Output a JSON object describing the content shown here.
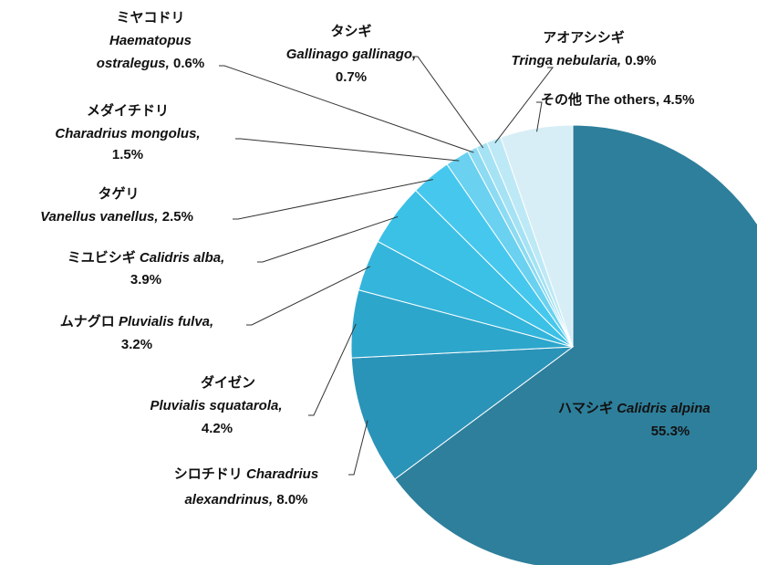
{
  "chart_data": {
    "type": "pie",
    "categories": [
      {
        "jp": "ハマシギ",
        "latin": [
          "Calidris alpina"
        ]
      },
      {
        "jp": "シロチドリ",
        "latin": [
          "Charadrius",
          "alexandrinus,"
        ]
      },
      {
        "jp": "ダイゼン",
        "latin": [
          "Pluvialis squatarola,"
        ]
      },
      {
        "jp": "ムナグロ",
        "latin": [
          "Pluvialis fulva,"
        ]
      },
      {
        "jp": "ミユビシギ",
        "latin": [
          "Calidris alba,"
        ]
      },
      {
        "jp": "タゲリ",
        "latin": [
          "Vanellus vanellus,"
        ]
      },
      {
        "jp": "メダイチドリ",
        "latin": [
          "Charadrius mongolus,"
        ]
      },
      {
        "jp": "ミヤコドリ",
        "latin": [
          "Haematopus",
          "ostralegus,"
        ]
      },
      {
        "jp": "タシギ",
        "latin": [
          "Gallinago gallinago,"
        ]
      },
      {
        "jp": "アオアシシギ",
        "latin": [
          "Tringa nebularia,"
        ]
      },
      {
        "jp": "その他",
        "latin": [
          "The others,"
        ]
      }
    ],
    "values": [
      55.3,
      8.0,
      4.2,
      3.2,
      3.9,
      2.5,
      1.5,
      0.6,
      0.7,
      0.9,
      4.5
    ],
    "value_labels": [
      "55.3%",
      "8.0%",
      "4.2%",
      "3.2%",
      "3.9%",
      "2.5%",
      "1.5%",
      "0.6%",
      "0.7%",
      "0.9%",
      "4.5%"
    ],
    "colors": [
      "#2e7f9b",
      "#2a93b8",
      "#2da6cc",
      "#34b5db",
      "#3bc0e6",
      "#46c8ee",
      "#6ad1f0",
      "#8ddbf2",
      "#a5e2f4",
      "#bde9f6",
      "#d8eef6"
    ]
  }
}
